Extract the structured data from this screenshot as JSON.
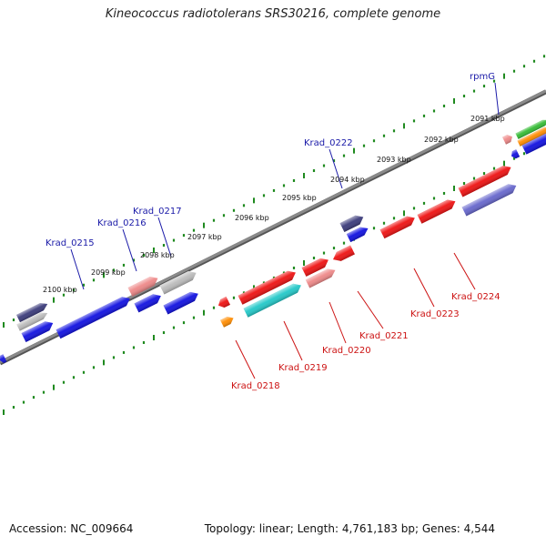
{
  "title": "Kineococcus radiotolerans SRS30216, complete genome",
  "footer": {
    "accession_label": "Accession:",
    "accession": "NC_009664",
    "topology_label": "Topology:",
    "topology": "linear",
    "length_label": "Length:",
    "length": "4,761,183 bp",
    "genes_label": "Genes:",
    "genes": "4,544"
  },
  "colors": {
    "backbone": "#8a8a8a",
    "tick": "#1f8a1f",
    "upper_label": "#1a1aa8",
    "lower_label": "#cc1111",
    "blue": "#1010e0",
    "red": "#ee1111",
    "pink": "#ee8888",
    "gray": "#bbbbbb",
    "navy": "#3a3a7a",
    "slate": "#6666cc",
    "cyan": "#22c8c8",
    "orange": "#ff8c00",
    "green": "#33bb33"
  },
  "scale_labels": [
    "2091 kbp",
    "2092 kbp",
    "2093 kbp",
    "2094 kbp",
    "2095 kbp",
    "2096 kbp",
    "2097 kbp",
    "2098 kbp",
    "2099 kbp",
    "2100 kbp"
  ],
  "upper_gene_labels": [
    "rpmG",
    "Krad_0222",
    "Krad_0217",
    "Krad_0216",
    "Krad_0215"
  ],
  "lower_gene_labels": [
    "Krad_0224",
    "Krad_0223",
    "Krad_0221",
    "Krad_0220",
    "Krad_0219",
    "Krad_0218"
  ]
}
